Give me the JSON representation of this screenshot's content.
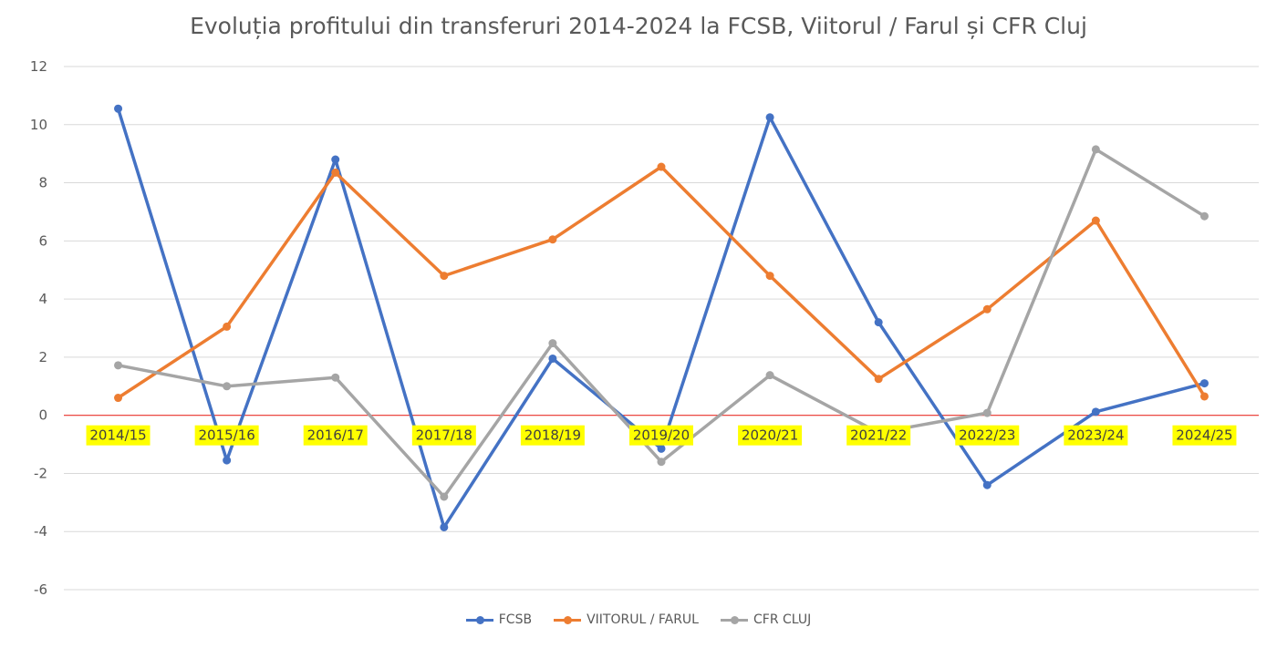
{
  "chart_data": {
    "type": "line",
    "title": "Evoluția profitului din transferuri 2014-2024 la FCSB, Viitorul / Farul și CFR Cluj",
    "categories": [
      "2014/15",
      "2015/16",
      "2016/17",
      "2017/18",
      "2018/19",
      "2019/20",
      "2020/21",
      "2021/22",
      "2022/23",
      "2023/24",
      "2024/25"
    ],
    "ylim": [
      -6,
      12
    ],
    "yticks": [
      -6,
      -4,
      -2,
      0,
      2,
      4,
      6,
      8,
      10,
      12
    ],
    "grid": true,
    "legend_position": "bottom",
    "zero_line_color": "#e8312a",
    "category_label_highlight": "#ffff00",
    "series": [
      {
        "name": "FCSB",
        "color": "#4472c4",
        "values": [
          10.55,
          -1.55,
          8.8,
          -3.85,
          1.95,
          -1.15,
          10.25,
          3.2,
          -2.4,
          0.12,
          1.1
        ]
      },
      {
        "name": "VIITORUL / FARUL",
        "color": "#ed7d31",
        "values": [
          0.6,
          3.05,
          8.35,
          4.8,
          6.05,
          8.55,
          4.8,
          1.25,
          3.65,
          6.7,
          0.65
        ]
      },
      {
        "name": "CFR CLUJ",
        "color": "#a5a5a5",
        "values": [
          1.72,
          1.0,
          1.3,
          -2.8,
          2.48,
          -1.6,
          1.38,
          -0.6,
          0.08,
          9.15,
          6.85
        ]
      }
    ]
  }
}
